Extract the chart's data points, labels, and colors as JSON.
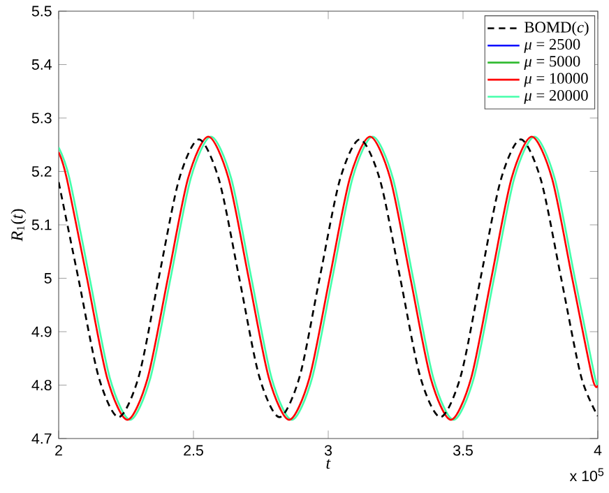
{
  "chart_data": {
    "type": "line",
    "xlabel": "*t*",
    "ylabel": "*R*$_{1}$(*t*)",
    "annotations": [
      "x 10$^{5}$"
    ],
    "xlim": [
      2,
      4
    ],
    "ylim": [
      4.7,
      5.5
    ],
    "xticks": [
      2,
      2.5,
      3,
      3.5,
      4
    ],
    "yticks": [
      4.7,
      4.8,
      4.9,
      5,
      5.1,
      5.2,
      5.3,
      5.4,
      5.5
    ],
    "grid": false,
    "legend": "top right",
    "marker": "none",
    "series": [
      {
        "name": "BOMD(*c*)",
        "color": "#000000",
        "line_style": "dashed",
        "x": [
          2.0,
          2.073,
          2.148,
          2.222,
          2.297,
          2.371,
          2.446,
          2.52,
          2.595,
          2.67,
          2.744,
          2.819,
          2.894,
          2.968,
          3.043,
          3.117,
          3.192,
          3.267,
          3.341,
          3.416,
          3.491,
          3.565,
          3.64,
          3.714,
          3.789,
          3.864,
          3.938,
          4.0
        ],
        "values": [
          5.18,
          5.0,
          4.816,
          4.74,
          4.816,
          5.0,
          5.184,
          5.26,
          5.184,
          5.0,
          4.816,
          4.74,
          4.816,
          5.0,
          5.184,
          5.26,
          5.184,
          5.0,
          4.816,
          4.74,
          4.816,
          5.0,
          5.184,
          5.26,
          5.184,
          5.0,
          4.816,
          4.742
        ]
      },
      {
        "name": "*μ* = 2500",
        "color": "#0000ff",
        "line_style": "solid"
      },
      {
        "name": "*μ* = 5000",
        "color": "#33bb33",
        "line_style": "solid"
      },
      {
        "name": "*μ* = 10000",
        "color": "#ff0000",
        "line_style": "solid",
        "x": [
          2.0,
          2.03,
          2.105,
          2.18,
          2.255,
          2.33,
          2.405,
          2.48,
          2.555,
          2.63,
          2.705,
          2.78,
          2.855,
          2.93,
          3.005,
          3.08,
          3.155,
          3.23,
          3.305,
          3.38,
          3.455,
          3.53,
          3.605,
          3.68,
          3.755,
          3.83,
          3.905,
          3.98,
          4.0
        ],
        "values": [
          5.236,
          5.187,
          5.0,
          4.813,
          4.735,
          4.813,
          5.0,
          5.187,
          5.265,
          5.187,
          5.0,
          4.813,
          4.735,
          4.813,
          5.0,
          5.187,
          5.265,
          5.187,
          5.0,
          4.813,
          4.735,
          4.813,
          5.0,
          5.187,
          5.265,
          5.187,
          5.0,
          4.813,
          4.8
        ]
      },
      {
        "name": "*μ* = 20000",
        "color": "#44ffaa",
        "line_style": "solid",
        "x": [
          2.0,
          2.04,
          2.115,
          2.19,
          2.265,
          2.34,
          2.415,
          2.49,
          2.565,
          2.64,
          2.715,
          2.79,
          2.865,
          2.94,
          3.015,
          3.09,
          3.165,
          3.24,
          3.315,
          3.39,
          3.465,
          3.54,
          3.615,
          3.69,
          3.765,
          3.84,
          3.915,
          3.99,
          4.0
        ],
        "values": [
          5.245,
          5.187,
          5.0,
          4.813,
          4.735,
          4.813,
          5.0,
          5.187,
          5.265,
          5.187,
          5.0,
          4.813,
          4.735,
          4.813,
          5.0,
          5.187,
          5.265,
          5.187,
          5.0,
          4.813,
          4.735,
          4.813,
          5.0,
          5.187,
          5.265,
          5.187,
          5.0,
          4.813,
          4.81
        ]
      }
    ]
  }
}
